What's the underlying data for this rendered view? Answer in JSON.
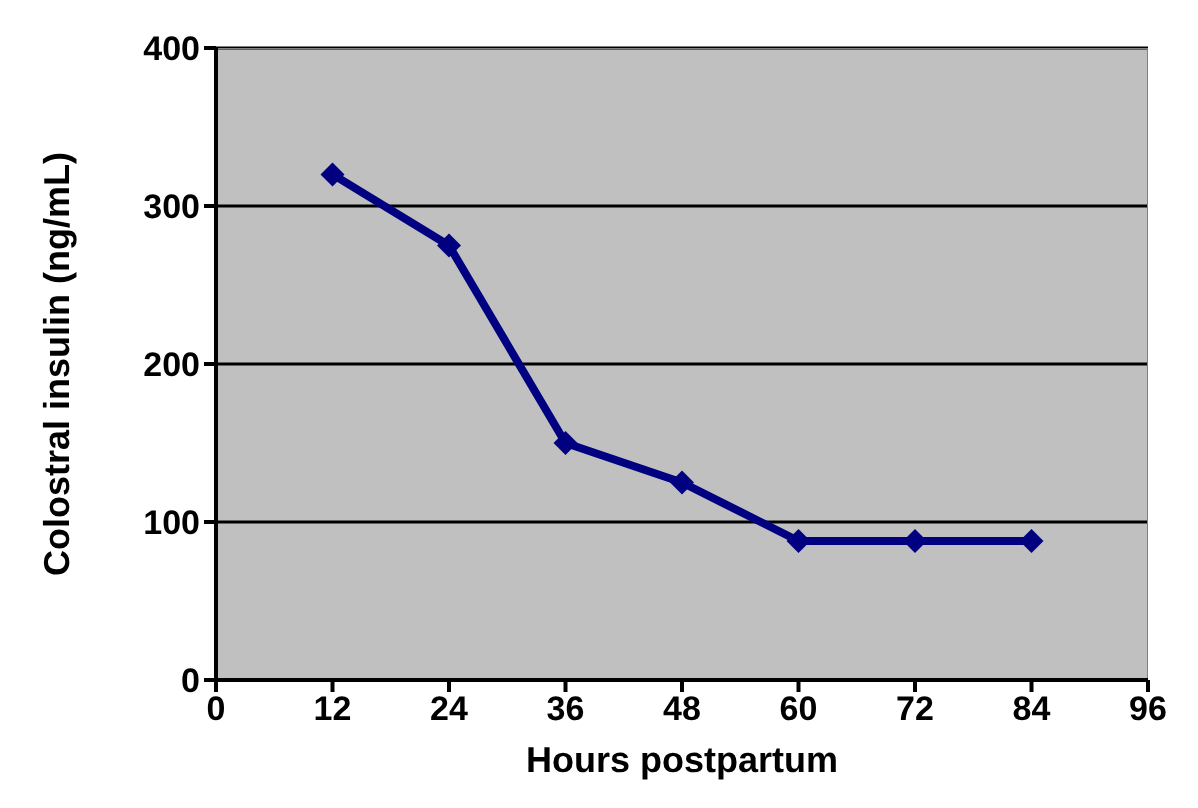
{
  "chart_data": {
    "type": "line",
    "xlabel": "Hours postpartum",
    "ylabel": "Colostral insulin (ng/mL)",
    "x": [
      12,
      24,
      36,
      48,
      60,
      72,
      84
    ],
    "series": [
      {
        "color": "#000080",
        "values": [
          320,
          275,
          150,
          125,
          88,
          88,
          88
        ]
      }
    ],
    "xlim": [
      0,
      96
    ],
    "xticks": [
      0,
      12,
      24,
      36,
      48,
      60,
      72,
      84,
      96
    ],
    "ylim": [
      0,
      400
    ],
    "yticks": [
      0,
      100,
      200,
      300,
      400
    ],
    "grid": "y",
    "marker": "diamond",
    "line_style": "solid"
  }
}
